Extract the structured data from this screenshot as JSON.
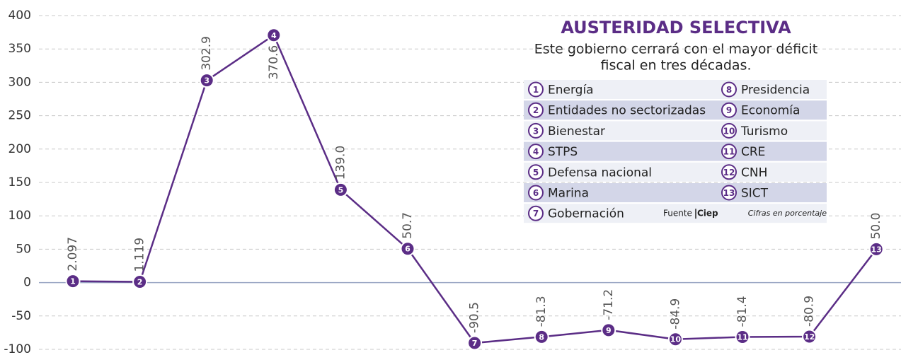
{
  "chart_data": {
    "type": "line",
    "title": "AUSTERIDAD SELECTIVA",
    "subtitle": [
      "Este gobierno cerrará con el mayor déficit",
      "fiscal en tres décadas."
    ],
    "categories": [
      "1",
      "2",
      "3",
      "4",
      "5",
      "6",
      "7",
      "8",
      "9",
      "10",
      "11",
      "12",
      "13"
    ],
    "legend_items": [
      "Energía",
      "Entidades no sectorizadas",
      "Bienestar",
      "STPS",
      "Defensa nacional",
      "Marina",
      "Gobernación",
      "Presidencia",
      "Economía",
      "Turismo",
      "CRE",
      "CNH",
      "SICT"
    ],
    "series": [
      {
        "name": null,
        "color": "#5b2d86",
        "values": [
          2.097,
          1.119,
          302.9,
          370.6,
          139.0,
          50.7,
          -90.5,
          -81.3,
          -71.2,
          -84.9,
          -81.4,
          -80.9,
          50.0
        ],
        "value_labels": [
          "2.097",
          "1.119",
          "302.9",
          "370.6",
          "139.0",
          "50.7",
          "-90.5",
          "-81.3",
          "-71.2",
          "-84.9",
          "-81.4",
          "-80.9",
          "50.0"
        ]
      }
    ],
    "ylim": [
      -100,
      400
    ],
    "yticks": [
      -100,
      -50,
      0,
      50,
      100,
      150,
      200,
      250,
      300,
      350,
      400
    ],
    "grid": true,
    "source_label": "Fuente",
    "source": "Ciep",
    "note": "Cifras en porcentaje"
  }
}
